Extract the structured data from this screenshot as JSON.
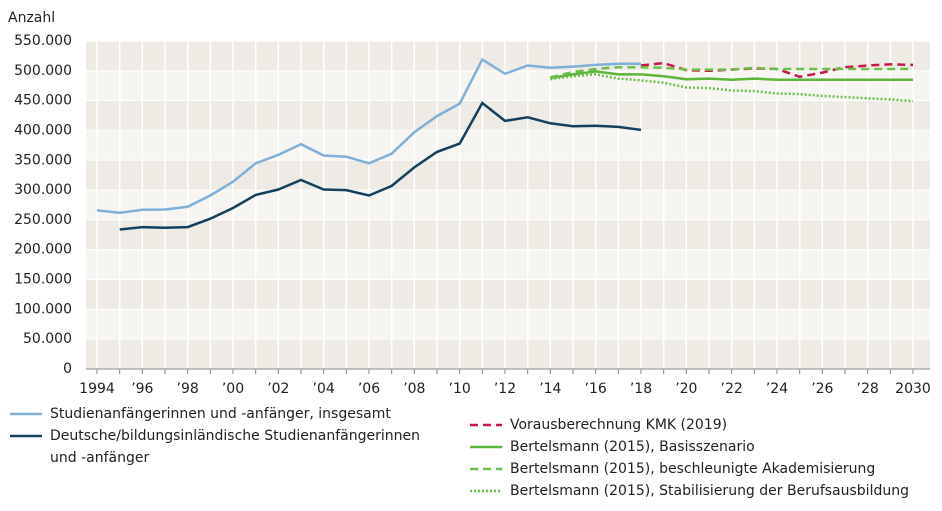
{
  "chart_data": {
    "type": "line",
    "y_label": "Anzahl",
    "categories": [
      "1994",
      null,
      "’96",
      null,
      "’98",
      null,
      "’00",
      null,
      "’02",
      null,
      "’04",
      null,
      "’06",
      null,
      "’08",
      null,
      "’10",
      null,
      "’12",
      null,
      "’14",
      null,
      "’16",
      null,
      "’18",
      null,
      "’20",
      null,
      "’22",
      null,
      "’24",
      null,
      "’26",
      null,
      "’28",
      null,
      "2030"
    ],
    "ylim": [
      0,
      550000
    ],
    "yticks": [
      0,
      {
        "value": 50000,
        "label": "50.000"
      },
      {
        "value": 100000,
        "label": "100.000"
      },
      {
        "value": 150000,
        "label": "150.000"
      },
      {
        "value": 200000,
        "label": "200.000"
      },
      {
        "value": 250000,
        "label": "250.000"
      },
      {
        "value": 300000,
        "label": "300.000"
      },
      {
        "value": 350000,
        "label": "350.000"
      },
      {
        "value": 400000,
        "label": "400.000"
      },
      {
        "value": 450000,
        "label": "450.000"
      },
      {
        "value": 500000,
        "label": "500.000"
      },
      {
        "value": 550000,
        "label": "550.000"
      }
    ],
    "grid": true,
    "series": [
      {
        "name": "Studienanfängerinnen und -anfänger, insgesamt",
        "color": "#7fb0d8",
        "style": "solid",
        "values": [
          266000,
          262000,
          267000,
          267500,
          272000,
          291000,
          314000,
          345000,
          359000,
          377000,
          358000,
          356000,
          345000,
          361000,
          397000,
          424000,
          445000,
          519000,
          495000,
          509000,
          505000,
          507000,
          510000,
          512000,
          512000,
          null,
          null,
          null,
          null,
          null,
          null,
          null,
          null,
          null,
          null,
          null,
          null
        ]
      },
      {
        "name": "Deutsche/bildungsinländische Studienanfängerinnen und -anfänger",
        "color": "#12405e",
        "style": "solid",
        "values": [
          null,
          234000,
          238000,
          237000,
          238000,
          252000,
          270000,
          292000,
          301000,
          317000,
          301000,
          300000,
          291000,
          307000,
          338000,
          364000,
          378000,
          446000,
          416000,
          422000,
          412000,
          407000,
          408000,
          406000,
          401000,
          null,
          null,
          null,
          null,
          null,
          null,
          null,
          null,
          null,
          null,
          null,
          null
        ]
      },
      {
        "name": "Vorausberechnung KMK (2019)",
        "color": "#c8174a",
        "style": "dashed",
        "values": [
          null,
          null,
          null,
          null,
          null,
          null,
          null,
          null,
          null,
          null,
          null,
          null,
          null,
          null,
          null,
          null,
          null,
          null,
          null,
          null,
          null,
          null,
          null,
          null,
          509000,
          513000,
          501000,
          500000,
          502000,
          504000,
          503000,
          490000,
          497000,
          506000,
          509000,
          511000,
          510000
        ]
      },
      {
        "name": "Bertelsmann (2015), Basisszenario",
        "color": "#5cb63a",
        "style": "solid",
        "values": [
          null,
          null,
          null,
          null,
          null,
          null,
          null,
          null,
          null,
          null,
          null,
          null,
          null,
          null,
          null,
          null,
          null,
          null,
          null,
          null,
          488000,
          494000,
          499000,
          494000,
          494000,
          491000,
          486000,
          487000,
          485000,
          487000,
          485000,
          485000,
          485000,
          485000,
          485000,
          485000,
          485000
        ]
      },
      {
        "name": "Bertelsmann (2015), beschleunigte Akademisierung",
        "color": "#6cbf4a",
        "style": "dashed",
        "values": [
          null,
          null,
          null,
          null,
          null,
          null,
          null,
          null,
          null,
          null,
          null,
          null,
          null,
          null,
          null,
          null,
          null,
          null,
          null,
          null,
          489000,
          498000,
          503000,
          506000,
          506000,
          505000,
          502000,
          502000,
          502000,
          505000,
          503000,
          503000,
          503000,
          503000,
          503000,
          503000,
          503000
        ]
      },
      {
        "name": "Bertelsmann (2015), Stabilisierung der Berufsausbildung",
        "color": "#6cbf4a",
        "style": "dotted",
        "values": [
          null,
          null,
          null,
          null,
          null,
          null,
          null,
          null,
          null,
          null,
          null,
          null,
          null,
          null,
          null,
          null,
          null,
          null,
          null,
          null,
          486000,
          491000,
          494000,
          487000,
          484000,
          480000,
          472000,
          471000,
          467000,
          466000,
          462000,
          461000,
          458000,
          456000,
          454000,
          452000,
          449000
        ]
      }
    ]
  }
}
